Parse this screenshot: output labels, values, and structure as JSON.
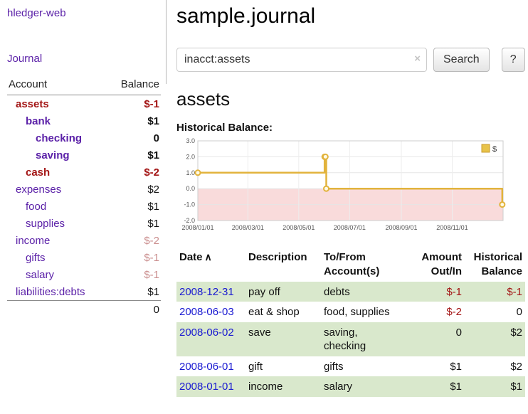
{
  "sidebar": {
    "app_title": "hledger-web",
    "journal_link": "Journal",
    "accounts": {
      "header": {
        "account": "Account",
        "balance": "Balance"
      },
      "rows": [
        {
          "name": "assets",
          "balance": "$-1"
        },
        {
          "name": "bank",
          "balance": "$1"
        },
        {
          "name": "checking",
          "balance": "0"
        },
        {
          "name": "saving",
          "balance": "$1"
        },
        {
          "name": "cash",
          "balance": "$-2"
        },
        {
          "name": "expenses",
          "balance": "$2"
        },
        {
          "name": "food",
          "balance": "$1"
        },
        {
          "name": "supplies",
          "balance": "$1"
        },
        {
          "name": "income",
          "balance": "$-2"
        },
        {
          "name": "gifts",
          "balance": "$-1"
        },
        {
          "name": "salary",
          "balance": "$-1"
        },
        {
          "name": "liabilities:debts",
          "balance": "$1"
        }
      ],
      "total": "0"
    }
  },
  "main": {
    "title": "sample.journal",
    "search": {
      "value": "inacct:assets",
      "clear_icon": "×",
      "search_button": "Search",
      "help_button": "?"
    },
    "account_heading": "assets",
    "chart_title": "Historical Balance:"
  },
  "chart_data": {
    "type": "line",
    "title": "Historical Balance",
    "legend": [
      {
        "label": "$",
        "color": "#e8c34a"
      }
    ],
    "ylim": [
      -2.0,
      3.0
    ],
    "xlim_days": [
      0,
      366
    ],
    "y_ticks": [
      3.0,
      2.0,
      1.0,
      0.0,
      -1.0,
      -2.0
    ],
    "x_ticks": [
      {
        "label": "2008/01/01",
        "day": 0
      },
      {
        "label": "2008/03/01",
        "day": 60
      },
      {
        "label": "2008/05/01",
        "day": 121
      },
      {
        "label": "2008/07/01",
        "day": 182
      },
      {
        "label": "2008/09/01",
        "day": 244
      },
      {
        "label": "2008/11/01",
        "day": 305
      }
    ],
    "series": [
      {
        "name": "$",
        "step": true,
        "points": [
          {
            "date": "2008-01-01",
            "day": 0,
            "value": 1.0
          },
          {
            "date": "2008-06-01",
            "day": 152,
            "value": 2.0
          },
          {
            "date": "2008-06-02",
            "day": 153,
            "value": 2.0
          },
          {
            "date": "2008-06-03",
            "day": 154,
            "value": 0.0
          },
          {
            "date": "2008-12-31",
            "day": 365,
            "value": -1.0
          }
        ]
      }
    ],
    "line_color": "#e2b33c",
    "negative_region_color": "#f9dbdb",
    "grid": true,
    "legend_position": "top-right"
  },
  "register": {
    "headers": {
      "date": "Date",
      "sort_indicator": "∧",
      "description": "Description",
      "account": "To/From Account(s)",
      "amount": "Amount Out/In",
      "balance": "Historical Balance"
    },
    "rows": [
      {
        "date": "2008-12-31",
        "description": "pay off",
        "account": "debts",
        "amount": "$-1",
        "balance": "$-1"
      },
      {
        "date": "2008-06-03",
        "description": "eat & shop",
        "account": "food, supplies",
        "amount": "$-2",
        "balance": "0"
      },
      {
        "date": "2008-06-02",
        "description": "save",
        "account": "saving, checking",
        "amount": "0",
        "balance": "$2"
      },
      {
        "date": "2008-06-01",
        "description": "gift",
        "account": "gifts",
        "amount": "$1",
        "balance": "$2"
      },
      {
        "date": "2008-01-01",
        "description": "income",
        "account": "salary",
        "amount": "$1",
        "balance": "$1"
      }
    ]
  }
}
